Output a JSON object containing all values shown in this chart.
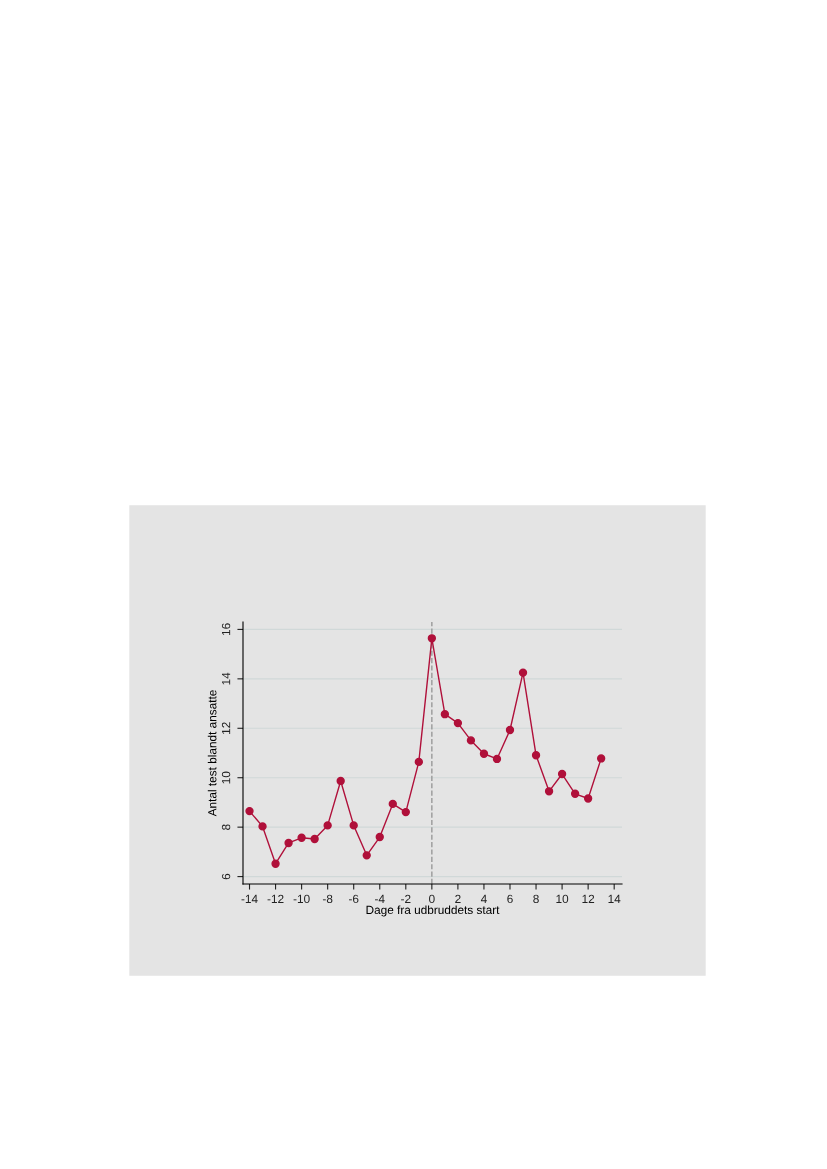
{
  "chart_data": {
    "type": "line",
    "xlabel": "Dage fra udbruddets start",
    "ylabel": "Antal test blandt ansatte",
    "x": [
      -14,
      -13,
      -12,
      -11,
      -10,
      -9,
      -8,
      -7,
      -6,
      -5,
      -4,
      -3,
      -2,
      -1,
      0,
      1,
      2,
      3,
      4,
      5,
      6,
      7,
      8,
      9,
      10,
      11,
      12,
      13
    ],
    "series": [
      {
        "color": "#b0103a",
        "values": [
          8.65,
          8.03,
          6.52,
          7.36,
          7.57,
          7.52,
          8.07,
          9.87,
          8.07,
          6.86,
          7.6,
          8.94,
          8.61,
          10.64,
          15.64,
          12.57,
          12.21,
          11.51,
          10.97,
          10.76,
          11.93,
          14.25,
          10.91,
          9.45,
          10.15,
          9.35,
          9.16,
          10.78
        ]
      }
    ],
    "xlim": [
      -14.5,
      14.6
    ],
    "ylim": [
      5.7,
      16.3
    ],
    "xticks": [
      -14,
      -12,
      -10,
      -8,
      -6,
      -4,
      -2,
      0,
      2,
      4,
      6,
      8,
      10,
      12,
      14
    ],
    "yticks": [
      6,
      8,
      10,
      12,
      14,
      16
    ],
    "ref_lines": [
      {
        "axis": "x",
        "value": 0,
        "color": "#999999",
        "line_style": "dashed"
      }
    ],
    "grid": "y",
    "marker": "circle",
    "line_style": "solid",
    "legend": false
  }
}
